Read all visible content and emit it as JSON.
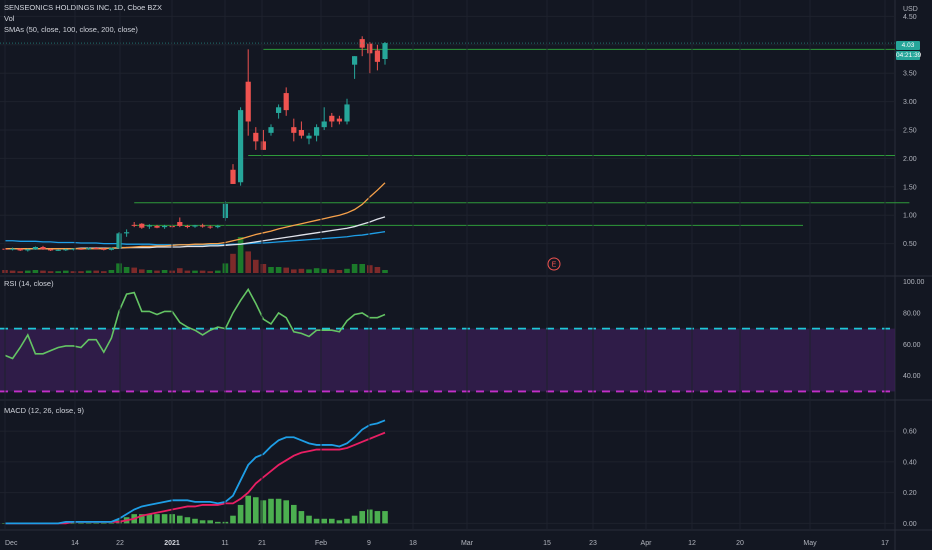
{
  "legend": {
    "title": "SENSEONICS HOLDINGS INC, 1D, Cboe BZX",
    "vol": "Vol",
    "smas": "SMAs (50, close, 100, close, 200, close)"
  },
  "rsi_label": "RSI (14, close)",
  "macd_label": "MACD (12, 26, close, 9)",
  "price_badge": {
    "price": "4.03",
    "countdown": "04:21:39"
  },
  "event_marker": "E",
  "colors": {
    "background": "#131722",
    "up": "#26a69a",
    "down": "#ef5350",
    "sma50": "#f7a14a",
    "sma100": "#e0e3eb",
    "sma200": "#1e9ee6",
    "rsi": "#64c464",
    "rsi_band": "#3a1f55",
    "rsi_upper": "#1ec8d8",
    "rsi_lower": "#c22fc8",
    "macd": "#1e9ee6",
    "signal": "#e91e63",
    "hline": "#2e9a3a",
    "grid": "#1e222d"
  },
  "chart_data": [
    {
      "type": "candlestick",
      "title": "SENSEONICS HOLDINGS INC, 1D, Cboe BZX",
      "y_axis_label": "USD",
      "ylim": [
        0.0,
        4.6
      ],
      "y_ticks": [
        4.5,
        4.0,
        3.5,
        3.0,
        2.5,
        2.0,
        1.5,
        1.0,
        0.5
      ],
      "x_ticks": [
        "Dec",
        "14",
        "22",
        "2021",
        "11",
        "21",
        "Feb",
        "9",
        "18",
        "Mar",
        "15",
        "23",
        "Apr",
        "12",
        "20",
        "May",
        "17"
      ],
      "candles": [
        {
          "o": 0.41,
          "h": 0.44,
          "l": 0.38,
          "c": 0.4
        },
        {
          "o": 0.4,
          "h": 0.43,
          "l": 0.38,
          "c": 0.41
        },
        {
          "o": 0.41,
          "h": 0.42,
          "l": 0.37,
          "c": 0.38
        },
        {
          "o": 0.38,
          "h": 0.41,
          "l": 0.36,
          "c": 0.4
        },
        {
          "o": 0.4,
          "h": 0.45,
          "l": 0.39,
          "c": 0.44
        },
        {
          "o": 0.44,
          "h": 0.46,
          "l": 0.39,
          "c": 0.4
        },
        {
          "o": 0.4,
          "h": 0.41,
          "l": 0.37,
          "c": 0.38
        },
        {
          "o": 0.38,
          "h": 0.4,
          "l": 0.37,
          "c": 0.39
        },
        {
          "o": 0.39,
          "h": 0.41,
          "l": 0.37,
          "c": 0.4
        },
        {
          "o": 0.4,
          "h": 0.42,
          "l": 0.38,
          "c": 0.41
        },
        {
          "o": 0.41,
          "h": 0.42,
          "l": 0.39,
          "c": 0.4
        },
        {
          "o": 0.4,
          "h": 0.43,
          "l": 0.39,
          "c": 0.42
        },
        {
          "o": 0.42,
          "h": 0.44,
          "l": 0.4,
          "c": 0.41
        },
        {
          "o": 0.41,
          "h": 0.42,
          "l": 0.38,
          "c": 0.39
        },
        {
          "o": 0.39,
          "h": 0.43,
          "l": 0.38,
          "c": 0.42
        },
        {
          "o": 0.42,
          "h": 0.7,
          "l": 0.41,
          "c": 0.68
        },
        {
          "o": 0.68,
          "h": 0.75,
          "l": 0.62,
          "c": 0.7
        },
        {
          "o": 0.83,
          "h": 0.88,
          "l": 0.79,
          "c": 0.82
        },
        {
          "o": 0.85,
          "h": 0.86,
          "l": 0.76,
          "c": 0.78
        },
        {
          "o": 0.8,
          "h": 0.84,
          "l": 0.76,
          "c": 0.82
        },
        {
          "o": 0.81,
          "h": 0.83,
          "l": 0.77,
          "c": 0.78
        },
        {
          "o": 0.79,
          "h": 0.83,
          "l": 0.76,
          "c": 0.81
        },
        {
          "o": 0.81,
          "h": 0.84,
          "l": 0.77,
          "c": 0.79
        },
        {
          "o": 0.88,
          "h": 0.96,
          "l": 0.79,
          "c": 0.81
        },
        {
          "o": 0.81,
          "h": 0.83,
          "l": 0.77,
          "c": 0.8
        },
        {
          "o": 0.8,
          "h": 0.83,
          "l": 0.78,
          "c": 0.82
        },
        {
          "o": 0.82,
          "h": 0.85,
          "l": 0.78,
          "c": 0.8
        },
        {
          "o": 0.8,
          "h": 0.82,
          "l": 0.76,
          "c": 0.79
        },
        {
          "o": 0.79,
          "h": 0.83,
          "l": 0.77,
          "c": 0.81
        },
        {
          "o": 0.95,
          "h": 1.25,
          "l": 0.9,
          "c": 1.2
        },
        {
          "o": 1.8,
          "h": 1.9,
          "l": 1.55,
          "c": 1.55
        },
        {
          "o": 1.58,
          "h": 2.9,
          "l": 1.52,
          "c": 2.85
        },
        {
          "o": 3.35,
          "h": 3.92,
          "l": 2.4,
          "c": 2.65
        },
        {
          "o": 2.45,
          "h": 2.55,
          "l": 2.15,
          "c": 2.3
        },
        {
          "o": 2.3,
          "h": 2.5,
          "l": 2.15,
          "c": 2.15
        },
        {
          "o": 2.45,
          "h": 2.6,
          "l": 2.4,
          "c": 2.55
        },
        {
          "o": 2.8,
          "h": 2.95,
          "l": 2.7,
          "c": 2.9
        },
        {
          "o": 3.15,
          "h": 3.25,
          "l": 2.75,
          "c": 2.85
        },
        {
          "o": 2.55,
          "h": 2.7,
          "l": 2.3,
          "c": 2.45
        },
        {
          "o": 2.5,
          "h": 2.65,
          "l": 2.35,
          "c": 2.4
        },
        {
          "o": 2.35,
          "h": 2.45,
          "l": 2.25,
          "c": 2.4
        },
        {
          "o": 2.4,
          "h": 2.6,
          "l": 2.3,
          "c": 2.55
        },
        {
          "o": 2.55,
          "h": 2.9,
          "l": 2.5,
          "c": 2.65
        },
        {
          "o": 2.75,
          "h": 2.8,
          "l": 2.55,
          "c": 2.65
        },
        {
          "o": 2.7,
          "h": 2.75,
          "l": 2.6,
          "c": 2.65
        },
        {
          "o": 2.65,
          "h": 3.05,
          "l": 2.6,
          "c": 2.95
        },
        {
          "o": 3.65,
          "h": 3.8,
          "l": 3.4,
          "c": 3.8
        },
        {
          "o": 4.1,
          "h": 4.15,
          "l": 3.8,
          "c": 3.95
        },
        {
          "o": 4.02,
          "h": 4.05,
          "l": 3.5,
          "c": 3.85
        },
        {
          "o": 3.9,
          "h": 4.0,
          "l": 3.55,
          "c": 3.7
        },
        {
          "o": 3.75,
          "h": 4.05,
          "l": 3.65,
          "c": 4.03
        }
      ],
      "volume": [
        {
          "v": 0.05,
          "up": false
        },
        {
          "v": 0.04,
          "up": false
        },
        {
          "v": 0.03,
          "up": false
        },
        {
          "v": 0.04,
          "up": true
        },
        {
          "v": 0.05,
          "up": true
        },
        {
          "v": 0.04,
          "up": false
        },
        {
          "v": 0.03,
          "up": false
        },
        {
          "v": 0.03,
          "up": true
        },
        {
          "v": 0.04,
          "up": true
        },
        {
          "v": 0.03,
          "up": false
        },
        {
          "v": 0.03,
          "up": false
        },
        {
          "v": 0.04,
          "up": true
        },
        {
          "v": 0.04,
          "up": false
        },
        {
          "v": 0.03,
          "up": false
        },
        {
          "v": 0.05,
          "up": true
        },
        {
          "v": 0.16,
          "up": true
        },
        {
          "v": 0.1,
          "up": true
        },
        {
          "v": 0.09,
          "up": false
        },
        {
          "v": 0.06,
          "up": false
        },
        {
          "v": 0.05,
          "up": true
        },
        {
          "v": 0.04,
          "up": false
        },
        {
          "v": 0.05,
          "up": true
        },
        {
          "v": 0.04,
          "up": false
        },
        {
          "v": 0.08,
          "up": false
        },
        {
          "v": 0.04,
          "up": false
        },
        {
          "v": 0.04,
          "up": true
        },
        {
          "v": 0.04,
          "up": false
        },
        {
          "v": 0.03,
          "up": false
        },
        {
          "v": 0.04,
          "up": true
        },
        {
          "v": 0.16,
          "up": true
        },
        {
          "v": 0.32,
          "up": false
        },
        {
          "v": 0.6,
          "up": true
        },
        {
          "v": 0.36,
          "up": false
        },
        {
          "v": 0.22,
          "up": false
        },
        {
          "v": 0.15,
          "up": false
        },
        {
          "v": 0.1,
          "up": true
        },
        {
          "v": 0.1,
          "up": true
        },
        {
          "v": 0.09,
          "up": false
        },
        {
          "v": 0.06,
          "up": false
        },
        {
          "v": 0.07,
          "up": false
        },
        {
          "v": 0.06,
          "up": true
        },
        {
          "v": 0.08,
          "up": true
        },
        {
          "v": 0.07,
          "up": true
        },
        {
          "v": 0.06,
          "up": false
        },
        {
          "v": 0.05,
          "up": false
        },
        {
          "v": 0.07,
          "up": true
        },
        {
          "v": 0.15,
          "up": true
        },
        {
          "v": 0.15,
          "up": true
        },
        {
          "v": 0.13,
          "up": false
        },
        {
          "v": 0.1,
          "up": false
        },
        {
          "v": 0.05,
          "up": true
        }
      ],
      "sma50": [
        0.41,
        0.41,
        0.41,
        0.41,
        0.41,
        0.41,
        0.41,
        0.41,
        0.41,
        0.41,
        0.41,
        0.41,
        0.41,
        0.41,
        0.42,
        0.43,
        0.43,
        0.44,
        0.45,
        0.45,
        0.46,
        0.46,
        0.47,
        0.48,
        0.48,
        0.49,
        0.49,
        0.5,
        0.5,
        0.52,
        0.55,
        0.58,
        0.62,
        0.66,
        0.69,
        0.72,
        0.76,
        0.79,
        0.82,
        0.85,
        0.88,
        0.91,
        0.94,
        0.97,
        1.0,
        1.04,
        1.1,
        1.19,
        1.32,
        1.44,
        1.57
      ],
      "sma100": [
        0.41,
        0.41,
        0.41,
        0.41,
        0.41,
        0.41,
        0.41,
        0.41,
        0.41,
        0.41,
        0.42,
        0.42,
        0.42,
        0.42,
        0.42,
        0.42,
        0.43,
        0.43,
        0.43,
        0.43,
        0.44,
        0.44,
        0.44,
        0.44,
        0.45,
        0.45,
        0.45,
        0.46,
        0.46,
        0.47,
        0.48,
        0.49,
        0.51,
        0.53,
        0.55,
        0.57,
        0.59,
        0.61,
        0.63,
        0.65,
        0.67,
        0.69,
        0.71,
        0.73,
        0.75,
        0.77,
        0.8,
        0.84,
        0.88,
        0.93,
        0.97
      ],
      "sma200": [
        0.55,
        0.55,
        0.54,
        0.54,
        0.54,
        0.53,
        0.53,
        0.52,
        0.52,
        0.52,
        0.51,
        0.51,
        0.51,
        0.5,
        0.5,
        0.5,
        0.49,
        0.49,
        0.49,
        0.49,
        0.48,
        0.48,
        0.48,
        0.48,
        0.48,
        0.48,
        0.48,
        0.48,
        0.48,
        0.48,
        0.49,
        0.49,
        0.5,
        0.51,
        0.51,
        0.52,
        0.53,
        0.54,
        0.55,
        0.56,
        0.57,
        0.58,
        0.59,
        0.6,
        0.61,
        0.62,
        0.64,
        0.65,
        0.67,
        0.69,
        0.71
      ],
      "horizontal_lines": [
        {
          "y": 3.92,
          "from_bar": 34,
          "to_end": true
        },
        {
          "y": 2.05,
          "from_bar": 32,
          "to_end": true
        },
        {
          "y": 1.22,
          "from_bar": 17,
          "to_bar": 119
        },
        {
          "y": 0.82,
          "from_bar": 17,
          "to_bar": 105
        }
      ]
    },
    {
      "type": "line",
      "title": "RSI (14, close)",
      "ylim": [
        29,
        101
      ],
      "y_ticks": [
        100.0,
        80.0,
        60.0,
        40.0
      ],
      "bands": {
        "upper": 70,
        "lower": 30
      },
      "values": [
        53,
        51,
        58,
        66,
        54,
        54,
        56,
        58,
        59,
        59,
        58,
        63,
        63,
        55,
        64,
        81,
        92,
        93,
        81,
        81,
        79,
        81,
        81,
        74,
        71,
        69,
        66,
        69,
        71,
        70,
        80,
        88,
        95,
        86,
        76,
        73,
        80,
        77,
        68,
        67,
        65,
        69,
        69,
        69,
        68,
        75,
        79,
        80,
        77,
        77,
        79
      ]
    },
    {
      "type": "line",
      "title": "MACD (12, 26, close, 9)",
      "ylim": [
        -0.03,
        0.75
      ],
      "y_ticks": [
        0.6,
        0.4,
        0.2,
        0.0
      ],
      "macd": [
        0.0,
        0.0,
        0.0,
        0.0,
        0.0,
        0.0,
        0.0,
        0.0,
        0.01,
        0.01,
        0.01,
        0.01,
        0.01,
        0.01,
        0.01,
        0.03,
        0.06,
        0.09,
        0.11,
        0.12,
        0.13,
        0.14,
        0.15,
        0.15,
        0.15,
        0.14,
        0.14,
        0.14,
        0.13,
        0.14,
        0.18,
        0.28,
        0.38,
        0.43,
        0.45,
        0.5,
        0.54,
        0.56,
        0.56,
        0.54,
        0.52,
        0.51,
        0.51,
        0.51,
        0.5,
        0.52,
        0.56,
        0.61,
        0.64,
        0.65,
        0.67
      ],
      "signal": [
        0.0,
        0.0,
        0.0,
        0.0,
        0.0,
        0.0,
        0.0,
        0.0,
        0.0,
        0.01,
        0.01,
        0.01,
        0.01,
        0.01,
        0.01,
        0.01,
        0.02,
        0.03,
        0.05,
        0.06,
        0.07,
        0.08,
        0.09,
        0.1,
        0.11,
        0.11,
        0.12,
        0.12,
        0.12,
        0.13,
        0.13,
        0.16,
        0.2,
        0.26,
        0.3,
        0.34,
        0.38,
        0.41,
        0.44,
        0.46,
        0.47,
        0.48,
        0.48,
        0.48,
        0.48,
        0.49,
        0.51,
        0.53,
        0.55,
        0.57,
        0.59
      ],
      "histogram": [
        0.0,
        0.0,
        0.0,
        0.0,
        0.0,
        0.0,
        0.0,
        0.0,
        0.01,
        0.0,
        0.0,
        0.0,
        0.0,
        0.0,
        0.0,
        0.02,
        0.04,
        0.06,
        0.06,
        0.06,
        0.06,
        0.06,
        0.06,
        0.05,
        0.04,
        0.03,
        0.02,
        0.02,
        0.01,
        0.01,
        0.05,
        0.12,
        0.18,
        0.17,
        0.15,
        0.16,
        0.16,
        0.15,
        0.12,
        0.08,
        0.05,
        0.03,
        0.03,
        0.03,
        0.02,
        0.03,
        0.05,
        0.08,
        0.09,
        0.08,
        0.08
      ]
    }
  ]
}
